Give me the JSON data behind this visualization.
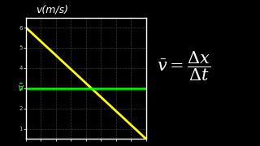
{
  "background_color": "#000000",
  "grid_color": "#3a3a3a",
  "axis_color": "#ffffff",
  "tick_color": "#cccccc",
  "ylabel": "v(m/s)",
  "ylim": [
    0.5,
    6.5
  ],
  "yticks": [
    1,
    2,
    3,
    4,
    5,
    6
  ],
  "xlim": [
    0,
    8
  ],
  "xticks_count": 9,
  "line_x": [
    0,
    8
  ],
  "line_y": [
    6,
    0.5
  ],
  "avg_v_value": 3.0,
  "avg_line_color": "#00ff00",
  "curve_color": "#ffff00",
  "avg_label": "$\\bar{v}$",
  "curve_linewidth": 2.0,
  "avg_linewidth": 1.8,
  "formula_fontsize": 15,
  "avg_label_fontsize": 9,
  "ylabel_fontsize": 9,
  "tick_fontsize": 5
}
